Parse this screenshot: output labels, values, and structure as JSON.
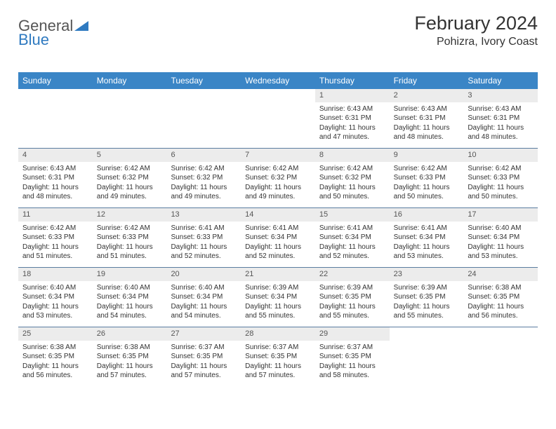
{
  "logo": {
    "part1": "General",
    "part2": "Blue"
  },
  "title": "February 2024",
  "location": "Pohizra, Ivory Coast",
  "colors": {
    "header_bg": "#3a85c6",
    "header_text": "#ffffff",
    "daynum_bg": "#ececec",
    "week_border": "#5a7ca0",
    "text": "#333333"
  },
  "day_headers": [
    "Sunday",
    "Monday",
    "Tuesday",
    "Wednesday",
    "Thursday",
    "Friday",
    "Saturday"
  ],
  "weeks": [
    [
      {
        "n": "",
        "sr": "",
        "ss": "",
        "dl": ""
      },
      {
        "n": "",
        "sr": "",
        "ss": "",
        "dl": ""
      },
      {
        "n": "",
        "sr": "",
        "ss": "",
        "dl": ""
      },
      {
        "n": "",
        "sr": "",
        "ss": "",
        "dl": ""
      },
      {
        "n": "1",
        "sr": "Sunrise: 6:43 AM",
        "ss": "Sunset: 6:31 PM",
        "dl": "Daylight: 11 hours and 47 minutes."
      },
      {
        "n": "2",
        "sr": "Sunrise: 6:43 AM",
        "ss": "Sunset: 6:31 PM",
        "dl": "Daylight: 11 hours and 48 minutes."
      },
      {
        "n": "3",
        "sr": "Sunrise: 6:43 AM",
        "ss": "Sunset: 6:31 PM",
        "dl": "Daylight: 11 hours and 48 minutes."
      }
    ],
    [
      {
        "n": "4",
        "sr": "Sunrise: 6:43 AM",
        "ss": "Sunset: 6:31 PM",
        "dl": "Daylight: 11 hours and 48 minutes."
      },
      {
        "n": "5",
        "sr": "Sunrise: 6:42 AM",
        "ss": "Sunset: 6:32 PM",
        "dl": "Daylight: 11 hours and 49 minutes."
      },
      {
        "n": "6",
        "sr": "Sunrise: 6:42 AM",
        "ss": "Sunset: 6:32 PM",
        "dl": "Daylight: 11 hours and 49 minutes."
      },
      {
        "n": "7",
        "sr": "Sunrise: 6:42 AM",
        "ss": "Sunset: 6:32 PM",
        "dl": "Daylight: 11 hours and 49 minutes."
      },
      {
        "n": "8",
        "sr": "Sunrise: 6:42 AM",
        "ss": "Sunset: 6:32 PM",
        "dl": "Daylight: 11 hours and 50 minutes."
      },
      {
        "n": "9",
        "sr": "Sunrise: 6:42 AM",
        "ss": "Sunset: 6:33 PM",
        "dl": "Daylight: 11 hours and 50 minutes."
      },
      {
        "n": "10",
        "sr": "Sunrise: 6:42 AM",
        "ss": "Sunset: 6:33 PM",
        "dl": "Daylight: 11 hours and 50 minutes."
      }
    ],
    [
      {
        "n": "11",
        "sr": "Sunrise: 6:42 AM",
        "ss": "Sunset: 6:33 PM",
        "dl": "Daylight: 11 hours and 51 minutes."
      },
      {
        "n": "12",
        "sr": "Sunrise: 6:42 AM",
        "ss": "Sunset: 6:33 PM",
        "dl": "Daylight: 11 hours and 51 minutes."
      },
      {
        "n": "13",
        "sr": "Sunrise: 6:41 AM",
        "ss": "Sunset: 6:33 PM",
        "dl": "Daylight: 11 hours and 52 minutes."
      },
      {
        "n": "14",
        "sr": "Sunrise: 6:41 AM",
        "ss": "Sunset: 6:34 PM",
        "dl": "Daylight: 11 hours and 52 minutes."
      },
      {
        "n": "15",
        "sr": "Sunrise: 6:41 AM",
        "ss": "Sunset: 6:34 PM",
        "dl": "Daylight: 11 hours and 52 minutes."
      },
      {
        "n": "16",
        "sr": "Sunrise: 6:41 AM",
        "ss": "Sunset: 6:34 PM",
        "dl": "Daylight: 11 hours and 53 minutes."
      },
      {
        "n": "17",
        "sr": "Sunrise: 6:40 AM",
        "ss": "Sunset: 6:34 PM",
        "dl": "Daylight: 11 hours and 53 minutes."
      }
    ],
    [
      {
        "n": "18",
        "sr": "Sunrise: 6:40 AM",
        "ss": "Sunset: 6:34 PM",
        "dl": "Daylight: 11 hours and 53 minutes."
      },
      {
        "n": "19",
        "sr": "Sunrise: 6:40 AM",
        "ss": "Sunset: 6:34 PM",
        "dl": "Daylight: 11 hours and 54 minutes."
      },
      {
        "n": "20",
        "sr": "Sunrise: 6:40 AM",
        "ss": "Sunset: 6:34 PM",
        "dl": "Daylight: 11 hours and 54 minutes."
      },
      {
        "n": "21",
        "sr": "Sunrise: 6:39 AM",
        "ss": "Sunset: 6:34 PM",
        "dl": "Daylight: 11 hours and 55 minutes."
      },
      {
        "n": "22",
        "sr": "Sunrise: 6:39 AM",
        "ss": "Sunset: 6:35 PM",
        "dl": "Daylight: 11 hours and 55 minutes."
      },
      {
        "n": "23",
        "sr": "Sunrise: 6:39 AM",
        "ss": "Sunset: 6:35 PM",
        "dl": "Daylight: 11 hours and 55 minutes."
      },
      {
        "n": "24",
        "sr": "Sunrise: 6:38 AM",
        "ss": "Sunset: 6:35 PM",
        "dl": "Daylight: 11 hours and 56 minutes."
      }
    ],
    [
      {
        "n": "25",
        "sr": "Sunrise: 6:38 AM",
        "ss": "Sunset: 6:35 PM",
        "dl": "Daylight: 11 hours and 56 minutes."
      },
      {
        "n": "26",
        "sr": "Sunrise: 6:38 AM",
        "ss": "Sunset: 6:35 PM",
        "dl": "Daylight: 11 hours and 57 minutes."
      },
      {
        "n": "27",
        "sr": "Sunrise: 6:37 AM",
        "ss": "Sunset: 6:35 PM",
        "dl": "Daylight: 11 hours and 57 minutes."
      },
      {
        "n": "28",
        "sr": "Sunrise: 6:37 AM",
        "ss": "Sunset: 6:35 PM",
        "dl": "Daylight: 11 hours and 57 minutes."
      },
      {
        "n": "29",
        "sr": "Sunrise: 6:37 AM",
        "ss": "Sunset: 6:35 PM",
        "dl": "Daylight: 11 hours and 58 minutes."
      },
      {
        "n": "",
        "sr": "",
        "ss": "",
        "dl": ""
      },
      {
        "n": "",
        "sr": "",
        "ss": "",
        "dl": ""
      }
    ]
  ]
}
